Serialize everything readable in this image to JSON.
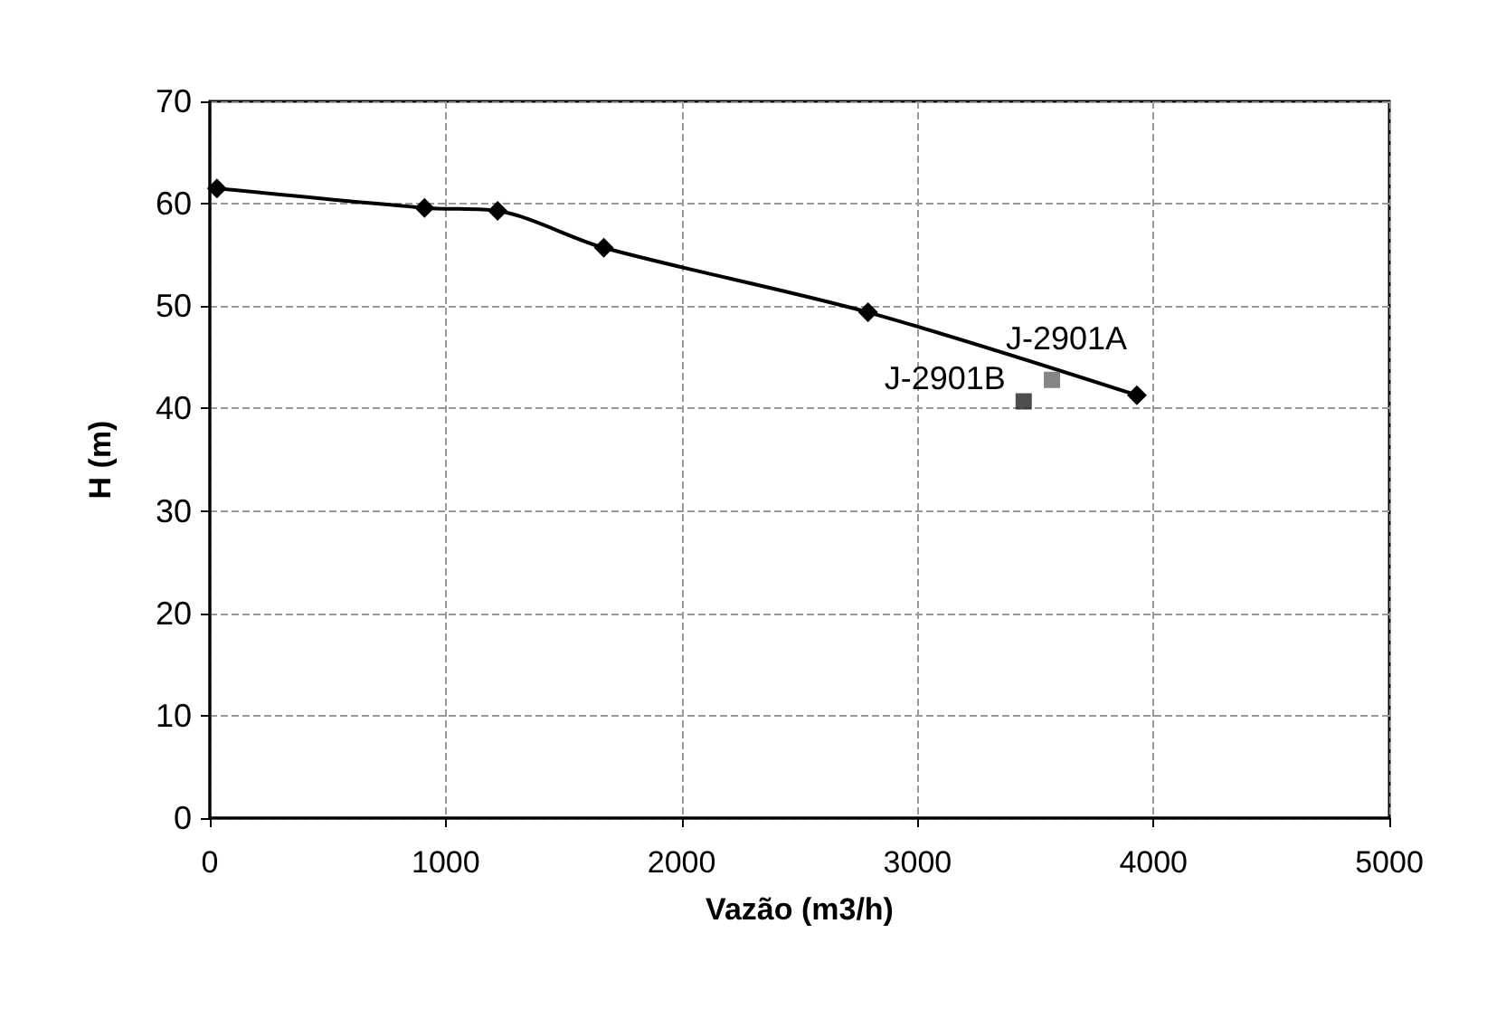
{
  "chart_data": {
    "type": "line",
    "xlabel": "Vazão (m3/h)",
    "ylabel": "H (m)",
    "xlim": [
      0,
      5000
    ],
    "xticks": [
      0,
      1000,
      2000,
      3000,
      4000,
      5000
    ],
    "ylim": [
      0,
      70
    ],
    "yticks": [
      0,
      10,
      20,
      30,
      40,
      50,
      60,
      70
    ],
    "grid": true,
    "series": [
      {
        "color": "#000000",
        "marker": "diamond",
        "line_style": "solid",
        "x": [
          30,
          910,
          1220,
          1670,
          2790,
          3930
        ],
        "values": [
          61.5,
          59.6,
          59.3,
          55.7,
          49.4,
          41.3
        ]
      },
      {
        "type": "scatter",
        "color": "#222222",
        "marker": "square",
        "x": [
          3450
        ],
        "values": [
          40.7
        ]
      },
      {
        "type": "scatter",
        "color": "#666666",
        "marker": "square",
        "x": [
          3570
        ],
        "values": [
          42.8
        ]
      }
    ],
    "annotations": [
      {
        "text": "J-2901B",
        "x": 3450,
        "y": 40.7
      },
      {
        "text": "J-2901A",
        "x": 3570,
        "y": 42.8
      }
    ]
  }
}
